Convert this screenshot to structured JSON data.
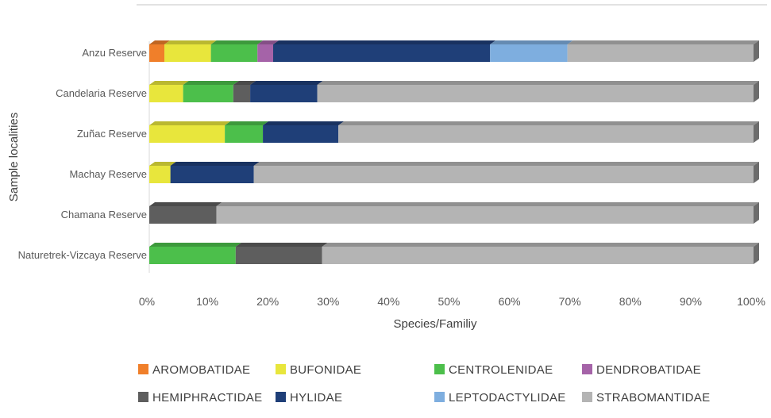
{
  "chart_data": {
    "type": "bar",
    "orientation": "horizontal",
    "stacked": "percent",
    "title": "",
    "xlabel": "Species/Familiy",
    "ylabel": "Sample localities",
    "xlim": [
      0,
      100
    ],
    "x_ticks": [
      "0%",
      "10%",
      "20%",
      "30%",
      "40%",
      "50%",
      "60%",
      "70%",
      "80%",
      "90%",
      "100%"
    ],
    "categories": [
      "Anzu Reserve",
      "Candelaria Reserve",
      "Zuñac Reserve",
      "Machay Reserve",
      "Chamana Reserve",
      "Naturetrek-Vizcaya Reserve"
    ],
    "legend_position": "bottom",
    "series": [
      {
        "name": "AROMOBATIDAE",
        "color": "#f07f2a",
        "values": [
          2.5,
          0,
          0,
          0,
          0,
          0
        ]
      },
      {
        "name": "BUFONIDAE",
        "color": "#e8e63c",
        "values": [
          7.7,
          5.6,
          12.5,
          3.5,
          0,
          0
        ]
      },
      {
        "name": "CENTROLENIDAE",
        "color": "#4cbf4b",
        "values": [
          7.7,
          8.3,
          6.3,
          0,
          0,
          14.3
        ]
      },
      {
        "name": "DENDROBATIDAE",
        "color": "#a563a8",
        "values": [
          2.6,
          0,
          0,
          0,
          0,
          0
        ]
      },
      {
        "name": "HEMIPHRACTIDAE",
        "color": "#5e5e5e",
        "values": [
          0,
          2.8,
          0,
          0,
          11.1,
          14.3
        ]
      },
      {
        "name": "HYLIDAE",
        "color": "#1f3f78",
        "values": [
          35.9,
          11.1,
          12.5,
          13.8,
          0,
          0
        ]
      },
      {
        "name": "LEPTODACTYLIDAE",
        "color": "#7eaedf",
        "values": [
          12.8,
          0,
          0,
          0,
          0,
          0
        ]
      },
      {
        "name": "STRABOMANTIDAE",
        "color": "#b4b4b4",
        "values": [
          30.8,
          72.2,
          68.7,
          82.7,
          88.9,
          71.4
        ]
      }
    ]
  }
}
